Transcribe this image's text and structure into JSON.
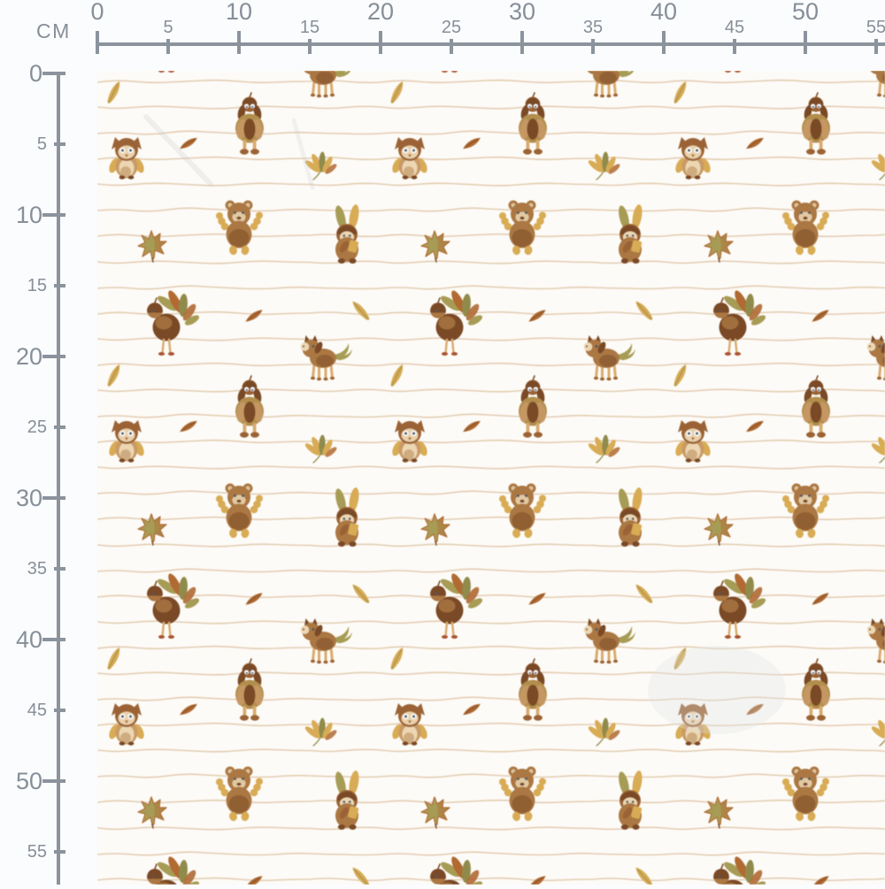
{
  "unit_label": "CM",
  "palette": {
    "page_bg": "#fbfcfd",
    "ruler": "#8b939d",
    "ruler_text": "#868f99",
    "fabric_bg": "#fdfbf7",
    "stripe": "#e0c7ab",
    "brown": "#9b6434",
    "brown_dark": "#7a4a27",
    "brown_mid": "#ab7742",
    "tan": "#c99a66",
    "cream": "#ecd7b2",
    "gold": "#d8ab55",
    "olive": "#a79c55",
    "olive_dark": "#908b4b",
    "rust": "#b06a33",
    "rust_red": "#a85231",
    "sheep_body": "#b28e4e",
    "leg": "#d9aa6e",
    "eye": "#4c5a68"
  },
  "rulers": {
    "horizontal": {
      "ticks": [
        {
          "cm": 0,
          "label": "0",
          "major": true
        },
        {
          "cm": 5,
          "label": "5",
          "major": false
        },
        {
          "cm": 10,
          "label": "10",
          "major": true
        },
        {
          "cm": 15,
          "label": "15",
          "major": false
        },
        {
          "cm": 20,
          "label": "20",
          "major": true
        },
        {
          "cm": 25,
          "label": "25",
          "major": false
        },
        {
          "cm": 30,
          "label": "30",
          "major": true
        },
        {
          "cm": 35,
          "label": "35",
          "major": false
        },
        {
          "cm": 40,
          "label": "40",
          "major": true
        },
        {
          "cm": 45,
          "label": "45",
          "major": false
        },
        {
          "cm": 50,
          "label": "50",
          "major": true
        },
        {
          "cm": 55,
          "label": "55",
          "major": false
        }
      ]
    },
    "vertical": {
      "ticks": [
        {
          "cm": 0,
          "label": "0",
          "major": true
        },
        {
          "cm": 5,
          "label": "5",
          "major": false
        },
        {
          "cm": 10,
          "label": "10",
          "major": true
        },
        {
          "cm": 15,
          "label": "15",
          "major": false
        },
        {
          "cm": 20,
          "label": "20",
          "major": true
        },
        {
          "cm": 25,
          "label": "25",
          "major": false
        },
        {
          "cm": 30,
          "label": "30",
          "major": true
        },
        {
          "cm": 35,
          "label": "35",
          "major": false
        },
        {
          "cm": 40,
          "label": "40",
          "major": true
        },
        {
          "cm": 45,
          "label": "45",
          "major": false
        },
        {
          "cm": 50,
          "label": "50",
          "major": true
        },
        {
          "cm": 55,
          "label": "55",
          "major": false
        }
      ]
    }
  },
  "fabric": {
    "motifs": [
      "owl",
      "sheep",
      "teddy-bear",
      "bunny",
      "acorn-turkey",
      "pony",
      "maple-leaf",
      "chestnut-leaf",
      "small-leaf",
      "gold-leaf"
    ]
  }
}
